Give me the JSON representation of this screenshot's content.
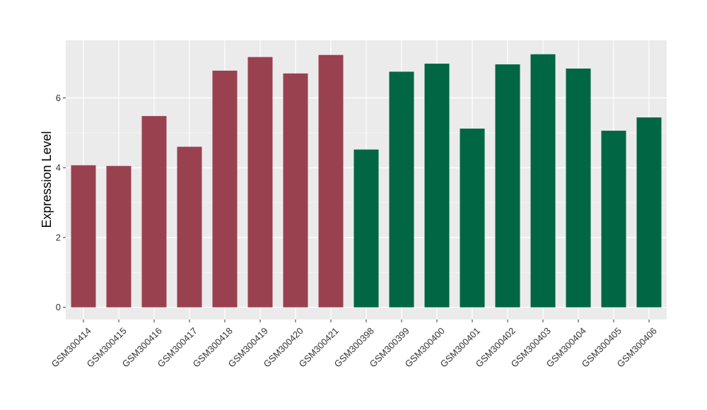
{
  "chart_data": {
    "type": "bar",
    "ylabel": "Expression Level",
    "xlabel": "",
    "ylim": [
      -0.35,
      7.65
    ],
    "yticks": [
      0,
      2,
      4,
      6
    ],
    "grid": true,
    "background": "#EBEBEB",
    "categories": [
      "GSM300414",
      "GSM300415",
      "GSM300416",
      "GSM300417",
      "GSM300418",
      "GSM300419",
      "GSM300420",
      "GSM300421",
      "GSM300398",
      "GSM300399",
      "GSM300400",
      "GSM300401",
      "GSM300402",
      "GSM300403",
      "GSM300404",
      "GSM300405",
      "GSM300406"
    ],
    "values": [
      4.07,
      4.05,
      5.48,
      4.6,
      6.78,
      7.17,
      6.7,
      7.23,
      4.52,
      6.75,
      6.98,
      5.12,
      6.96,
      7.25,
      6.84,
      5.06,
      5.44
    ],
    "colors": [
      "#9A4150",
      "#9A4150",
      "#9A4150",
      "#9A4150",
      "#9A4150",
      "#9A4150",
      "#9A4150",
      "#9A4150",
      "#006644",
      "#006644",
      "#006644",
      "#006644",
      "#006644",
      "#006644",
      "#006644",
      "#006644",
      "#006644"
    ]
  }
}
